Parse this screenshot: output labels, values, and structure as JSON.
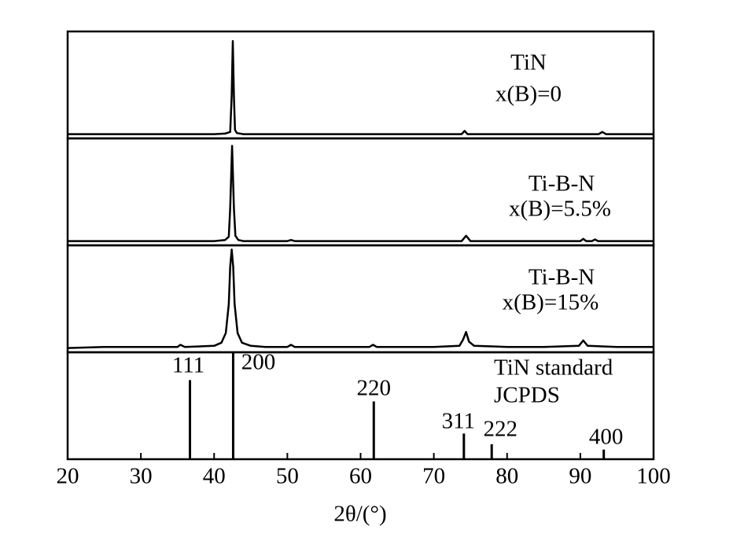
{
  "chart_data": [
    {
      "type": "line",
      "labels": [
        "TiN",
        "x(B)=0"
      ],
      "color": "#000000",
      "xlim": [
        20,
        100
      ],
      "ylim": [
        0,
        100
      ],
      "x": [
        20,
        25,
        30,
        35,
        40,
        41.5,
        42.2,
        42.4,
        42.55,
        42.7,
        42.85,
        43.1,
        44,
        46,
        50,
        55,
        60,
        65,
        70,
        73.8,
        74.2,
        74.6,
        78,
        85,
        90,
        92.5,
        93,
        93.5,
        96,
        100
      ],
      "values": [
        4,
        4,
        4,
        4,
        4,
        4.5,
        6,
        40,
        91,
        40,
        8,
        5,
        4,
        4,
        4,
        4,
        4,
        4,
        4,
        4,
        7,
        4,
        4,
        4,
        4,
        4,
        6,
        4,
        4,
        4
      ]
    },
    {
      "type": "line",
      "labels": [
        "Ti-B-N",
        "x(B)=5.5%"
      ],
      "color": "#000000",
      "xlim": [
        20,
        100
      ],
      "ylim": [
        0,
        100
      ],
      "x": [
        20,
        25,
        30,
        35,
        40,
        41.5,
        42,
        42.2,
        42.45,
        42.7,
        42.9,
        43.3,
        44,
        46,
        50,
        50.5,
        51,
        55,
        60,
        65,
        70,
        73.8,
        74.4,
        75,
        80,
        85,
        90,
        90.4,
        90.8,
        91.6,
        92,
        92.4,
        96,
        100
      ],
      "values": [
        4,
        4,
        4,
        4,
        4,
        5,
        8,
        35,
        93,
        35,
        9,
        5,
        4,
        4,
        4,
        5,
        4,
        4,
        4,
        4,
        4,
        4,
        9,
        4,
        4,
        4,
        4,
        6,
        4,
        4,
        5.5,
        4,
        4,
        4
      ]
    },
    {
      "type": "line",
      "labels": [
        "Ti-B-N",
        "x(B)=15%"
      ],
      "color": "#000000",
      "xlim": [
        20,
        100
      ],
      "ylim": [
        0,
        100
      ],
      "x": [
        20,
        25,
        30,
        35,
        35.4,
        36,
        40,
        41,
        41.6,
        42,
        42.2,
        42.4,
        42.6,
        42.8,
        43.2,
        43.8,
        45,
        47,
        50,
        50.5,
        51,
        55,
        61.2,
        61.7,
        62.2,
        65,
        70,
        73.5,
        74,
        74.4,
        74.8,
        75.5,
        80,
        85,
        89.8,
        90.4,
        91,
        95,
        100
      ],
      "values": [
        4,
        5,
        5,
        5,
        7,
        5,
        6,
        9,
        18,
        45,
        80,
        96,
        80,
        45,
        18,
        9,
        6,
        5,
        5,
        7,
        5,
        5,
        5,
        7,
        5,
        5,
        5,
        6,
        12,
        19,
        10,
        6,
        5,
        5,
        6,
        11,
        6,
        5,
        5
      ]
    },
    {
      "type": "stem",
      "labels": [
        "TiN standard",
        "JCPDS"
      ],
      "color": "#000000",
      "xlim": [
        20,
        100
      ],
      "ylim": [
        0,
        100
      ],
      "categories": [
        "111",
        "200",
        "220",
        "311",
        "222",
        "400"
      ],
      "x": [
        36.7,
        42.6,
        61.8,
        74.1,
        77.9,
        93.2
      ],
      "values": [
        74,
        100,
        54,
        24,
        14,
        9
      ],
      "xticks": [
        20,
        30,
        40,
        50,
        60,
        70,
        80,
        90,
        100
      ],
      "xlabel": "2θ/(°)"
    }
  ]
}
